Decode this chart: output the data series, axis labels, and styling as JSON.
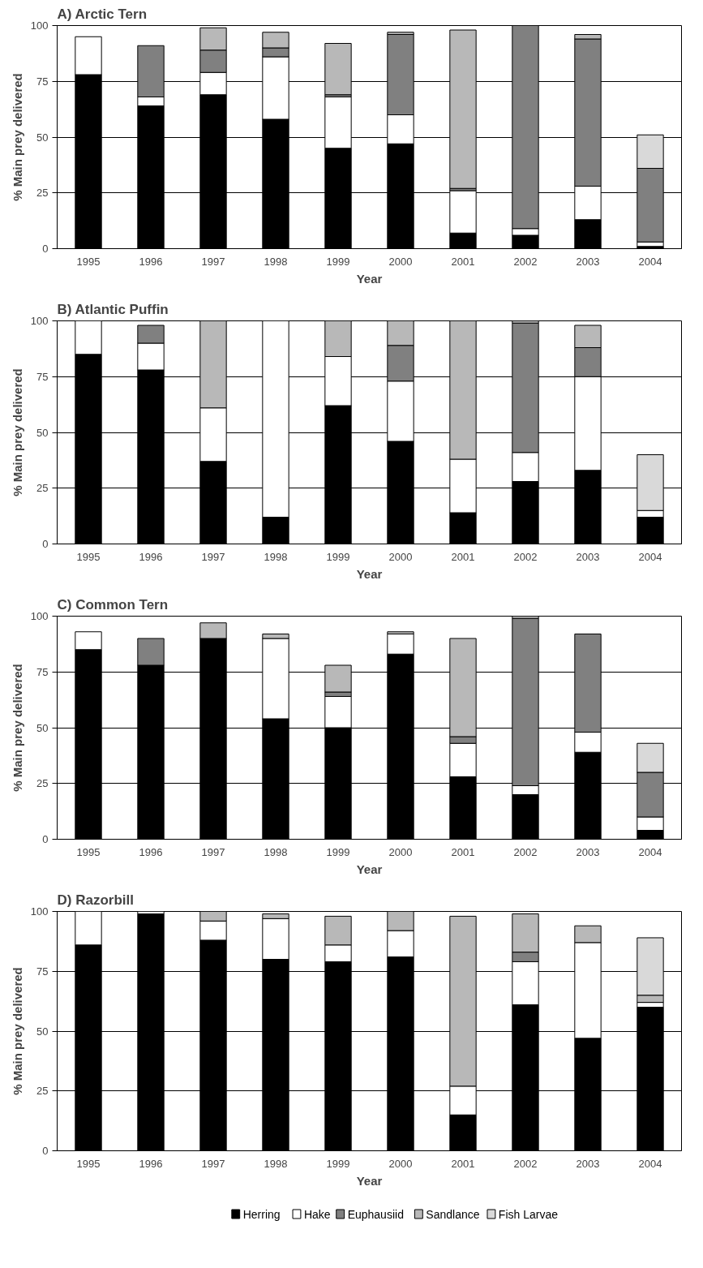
{
  "chart_data": [
    {
      "type": "bar",
      "title": "A) Arctic Tern",
      "xlabel": "Year",
      "ylabel": "% Main prey delivered",
      "categories": [
        "1995",
        "1996",
        "1997",
        "1998",
        "1999",
        "2000",
        "2001",
        "2002",
        "2003",
        "2004"
      ],
      "stacked": true,
      "ylim": [
        0,
        100
      ],
      "yticks": [
        0,
        25,
        50,
        75,
        100
      ],
      "grid": "y",
      "series": [
        {
          "color": "#000000",
          "values": [
            78,
            64,
            69,
            58,
            45,
            47,
            7,
            6,
            13,
            1
          ]
        },
        {
          "color": "#ffffff",
          "values": [
            17,
            4,
            10,
            28,
            23,
            13,
            19,
            3,
            15,
            2
          ]
        },
        {
          "color": "#808080",
          "values": [
            0,
            23,
            10,
            4,
            1,
            36,
            1,
            91,
            66,
            33
          ]
        },
        {
          "color": "#b8b8b8",
          "values": [
            0,
            0,
            10,
            7,
            23,
            1,
            71,
            0,
            2,
            0
          ]
        },
        {
          "color": "#d9d9d9",
          "values": [
            0,
            0,
            0,
            0,
            0,
            0,
            0,
            0,
            0,
            15
          ]
        }
      ]
    },
    {
      "type": "bar",
      "title": "B) Atlantic Puffin",
      "xlabel": "Year",
      "ylabel": "% Main prey delivered",
      "categories": [
        "1995",
        "1996",
        "1997",
        "1998",
        "1999",
        "2000",
        "2001",
        "2002",
        "2003",
        "2004"
      ],
      "stacked": true,
      "ylim": [
        0,
        100
      ],
      "yticks": [
        0,
        25,
        50,
        75,
        100
      ],
      "grid": "y",
      "series": [
        {
          "color": "#000000",
          "values": [
            85,
            78,
            37,
            12,
            62,
            46,
            14,
            28,
            33,
            12
          ]
        },
        {
          "color": "#ffffff",
          "values": [
            15,
            12,
            24,
            88,
            22,
            27,
            24,
            13,
            42,
            3
          ]
        },
        {
          "color": "#808080",
          "values": [
            0,
            8,
            0,
            0,
            0,
            16,
            0,
            58,
            13,
            0
          ]
        },
        {
          "color": "#b8b8b8",
          "values": [
            0,
            0,
            39,
            0,
            16,
            11,
            62,
            1,
            10,
            0
          ]
        },
        {
          "color": "#d9d9d9",
          "values": [
            0,
            0,
            0,
            0,
            0,
            0,
            0,
            0,
            0,
            25
          ]
        }
      ]
    },
    {
      "type": "bar",
      "title": "C) Common Tern",
      "xlabel": "Year",
      "ylabel": "% Main prey delivered",
      "categories": [
        "1995",
        "1996",
        "1997",
        "1998",
        "1999",
        "2000",
        "2001",
        "2002",
        "2003",
        "2004"
      ],
      "stacked": true,
      "ylim": [
        0,
        100
      ],
      "yticks": [
        0,
        25,
        50,
        75,
        100
      ],
      "grid": "y",
      "series": [
        {
          "color": "#000000",
          "values": [
            85,
            78,
            90,
            54,
            50,
            83,
            28,
            20,
            39,
            4
          ]
        },
        {
          "color": "#ffffff",
          "values": [
            8,
            0,
            0,
            36,
            14,
            9,
            15,
            4,
            9,
            6
          ]
        },
        {
          "color": "#808080",
          "values": [
            0,
            12,
            0,
            0,
            2,
            0,
            3,
            75,
            44,
            20
          ]
        },
        {
          "color": "#b8b8b8",
          "values": [
            0,
            0,
            7,
            2,
            12,
            1,
            44,
            1,
            0,
            0
          ]
        },
        {
          "color": "#d9d9d9",
          "values": [
            0,
            0,
            0,
            0,
            0,
            0,
            0,
            0,
            0,
            13
          ]
        }
      ]
    },
    {
      "type": "bar",
      "title": "D) Razorbill",
      "xlabel": "Year",
      "ylabel": "% Main prey delivered",
      "categories": [
        "1995",
        "1996",
        "1997",
        "1998",
        "1999",
        "2000",
        "2001",
        "2002",
        "2003",
        "2004"
      ],
      "stacked": true,
      "ylim": [
        0,
        100
      ],
      "yticks": [
        0,
        25,
        50,
        75,
        100
      ],
      "grid": "y",
      "legend": "bottom",
      "series": [
        {
          "name": "Herring",
          "color": "#000000",
          "values": [
            86,
            99,
            88,
            80,
            79,
            81,
            15,
            61,
            47,
            60
          ]
        },
        {
          "name": "Hake",
          "color": "#ffffff",
          "values": [
            14,
            1,
            8,
            17,
            7,
            11,
            12,
            18,
            40,
            2
          ]
        },
        {
          "name": "Euphausiid",
          "color": "#808080",
          "values": [
            0,
            0,
            0,
            0,
            0,
            0,
            0,
            4,
            0,
            0
          ]
        },
        {
          "name": "Sandlance",
          "color": "#b8b8b8",
          "values": [
            0,
            0,
            4,
            2,
            12,
            8,
            71,
            16,
            7,
            3
          ]
        },
        {
          "name": "Fish Larvae",
          "color": "#d9d9d9",
          "values": [
            0,
            0,
            0,
            0,
            0,
            0,
            0,
            0,
            0,
            24
          ]
        }
      ]
    }
  ]
}
